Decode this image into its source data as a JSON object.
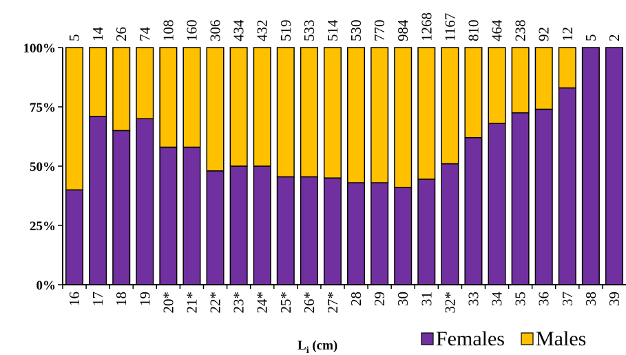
{
  "chart_data": {
    "type": "bar",
    "stacked": true,
    "normalized": true,
    "xlabel": "Li (cm)",
    "xlabel_main": "L",
    "xlabel_sub": "i",
    "xlabel_unit": "(cm)",
    "ylabel": "",
    "ylim": [
      0,
      100
    ],
    "yticks": [
      "0%",
      "25%",
      "50%",
      "75%",
      "100%"
    ],
    "categories": [
      "16",
      "17",
      "18",
      "19",
      "20*",
      "21*",
      "22*",
      "23*",
      "24*",
      "25*",
      "26*",
      "27*",
      "28",
      "29",
      "30",
      "31",
      "32*",
      "33",
      "34",
      "35",
      "36",
      "37",
      "38",
      "39"
    ],
    "counts": [
      "5",
      "14",
      "26",
      "74",
      "108",
      "160",
      "306",
      "434",
      "432",
      "519",
      "533",
      "514",
      "530",
      "770",
      "984",
      "1268",
      "1167",
      "810",
      "464",
      "238",
      "92",
      "12",
      "5",
      "2"
    ],
    "series": [
      {
        "name": "Females",
        "color": "#7030a0",
        "values": [
          40,
          71,
          65,
          70,
          58,
          58,
          48,
          50,
          50,
          45.5,
          45.5,
          45,
          43,
          43,
          41,
          44.5,
          51,
          62,
          68,
          72.5,
          74,
          83,
          100,
          100
        ]
      },
      {
        "name": "Males",
        "color": "#ffc000",
        "values": [
          60,
          29,
          35,
          30,
          42,
          42,
          52,
          50,
          50,
          54.5,
          54.5,
          55,
          57,
          57,
          59,
          55.5,
          49,
          38,
          32,
          27.5,
          26,
          17,
          0,
          0
        ]
      }
    ],
    "legend": [
      {
        "label": "Females",
        "color": "#7030a0"
      },
      {
        "label": "Males",
        "color": "#ffc000"
      }
    ],
    "legend_position": "bottom-right",
    "grid": false
  }
}
